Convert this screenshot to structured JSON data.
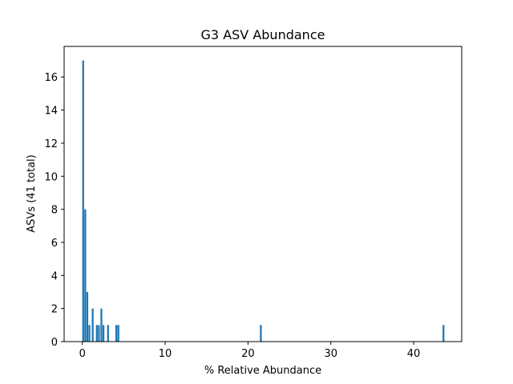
{
  "chart_data": {
    "type": "bar",
    "title": "G3 ASV Abundance",
    "xlabel": "% Relative Abundance",
    "ylabel": "ASVs (41 total)",
    "xlim": [
      -2.2,
      45.8
    ],
    "ylim": [
      0,
      17.85
    ],
    "xticks": [
      0,
      10,
      20,
      30,
      40
    ],
    "yticks": [
      0,
      2,
      4,
      6,
      8,
      10,
      12,
      14,
      16
    ],
    "bar_width": 0.22,
    "bar_color": "#1f77b4",
    "grid": false,
    "legend": "none",
    "bars": [
      {
        "x": 0.1,
        "y": 17
      },
      {
        "x": 0.35,
        "y": 8
      },
      {
        "x": 0.6,
        "y": 3
      },
      {
        "x": 0.85,
        "y": 1
      },
      {
        "x": 1.25,
        "y": 2
      },
      {
        "x": 1.75,
        "y": 1
      },
      {
        "x": 2.0,
        "y": 1
      },
      {
        "x": 2.3,
        "y": 2
      },
      {
        "x": 2.55,
        "y": 1
      },
      {
        "x": 3.1,
        "y": 1
      },
      {
        "x": 4.1,
        "y": 1
      },
      {
        "x": 4.35,
        "y": 1
      },
      {
        "x": 21.55,
        "y": 1
      },
      {
        "x": 43.6,
        "y": 1
      }
    ]
  }
}
